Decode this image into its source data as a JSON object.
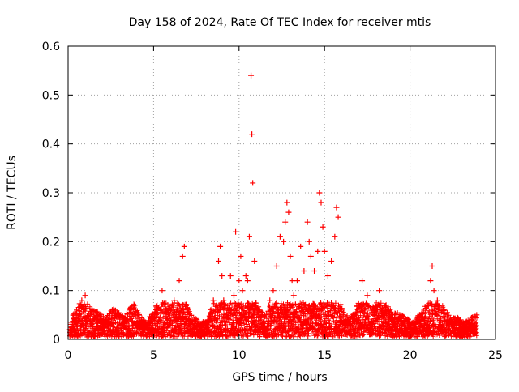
{
  "chart_data": {
    "type": "scatter",
    "title": "Day 158 of 2024, Rate Of TEC Index for receiver mtis",
    "xlabel": "GPS time / hours",
    "ylabel": "ROTI / TECUs",
    "xlim": [
      0,
      25
    ],
    "ylim": [
      0,
      0.6
    ],
    "xticks": [
      0,
      5,
      10,
      15,
      20,
      25
    ],
    "yticks": [
      0,
      0.1,
      0.2,
      0.3,
      0.4,
      0.5,
      0.6
    ],
    "grid": true,
    "marker": "+",
    "series": [
      {
        "name": "ROTI",
        "color": "#ff0000",
        "x": [
          0.1,
          0.3,
          0.5,
          0.8,
          1.0,
          1.4,
          1.8,
          2.2,
          2.6,
          3.0,
          3.3,
          3.6,
          3.9,
          4.1,
          4.3,
          4.6,
          5.2,
          5.5,
          5.9,
          6.2,
          6.5,
          6.7,
          6.8,
          7.0,
          7.4,
          7.8,
          8.2,
          8.5,
          8.8,
          8.9,
          9.0,
          9.1,
          9.3,
          9.5,
          9.7,
          9.8,
          10.0,
          10.1,
          10.2,
          10.4,
          10.5,
          10.6,
          10.7,
          10.75,
          10.8,
          10.9,
          11.0,
          11.2,
          11.5,
          11.8,
          12.0,
          12.2,
          12.4,
          12.6,
          12.7,
          12.8,
          12.9,
          13.0,
          13.1,
          13.2,
          13.4,
          13.6,
          13.8,
          14.0,
          14.1,
          14.2,
          14.4,
          14.6,
          14.7,
          14.8,
          14.9,
          15.0,
          15.2,
          15.4,
          15.6,
          15.7,
          15.8,
          16.0,
          16.4,
          16.8,
          17.2,
          17.5,
          17.8,
          18.2,
          18.6,
          19.0,
          19.4,
          19.8,
          20.2,
          20.6,
          21.0,
          21.2,
          21.3,
          21.4,
          21.6,
          22.0,
          22.4,
          22.8,
          23.2,
          23.6,
          23.9
        ],
        "y": [
          0.02,
          0.05,
          0.06,
          0.08,
          0.09,
          0.06,
          0.05,
          0.04,
          0.06,
          0.05,
          0.04,
          0.06,
          0.07,
          0.05,
          0.04,
          0.03,
          0.07,
          0.1,
          0.06,
          0.08,
          0.12,
          0.17,
          0.19,
          0.06,
          0.04,
          0.03,
          0.04,
          0.08,
          0.16,
          0.19,
          0.13,
          0.08,
          0.06,
          0.13,
          0.09,
          0.22,
          0.12,
          0.17,
          0.1,
          0.13,
          0.12,
          0.21,
          0.54,
          0.42,
          0.32,
          0.16,
          0.07,
          0.06,
          0.05,
          0.08,
          0.1,
          0.15,
          0.21,
          0.2,
          0.24,
          0.28,
          0.26,
          0.17,
          0.12,
          0.09,
          0.12,
          0.19,
          0.14,
          0.24,
          0.2,
          0.17,
          0.14,
          0.18,
          0.3,
          0.28,
          0.23,
          0.18,
          0.13,
          0.16,
          0.21,
          0.27,
          0.25,
          0.06,
          0.04,
          0.05,
          0.12,
          0.09,
          0.06,
          0.1,
          0.07,
          0.05,
          0.05,
          0.04,
          0.03,
          0.05,
          0.07,
          0.12,
          0.15,
          0.1,
          0.08,
          0.06,
          0.04,
          0.04,
          0.03,
          0.04,
          0.05
        ]
      }
    ]
  }
}
